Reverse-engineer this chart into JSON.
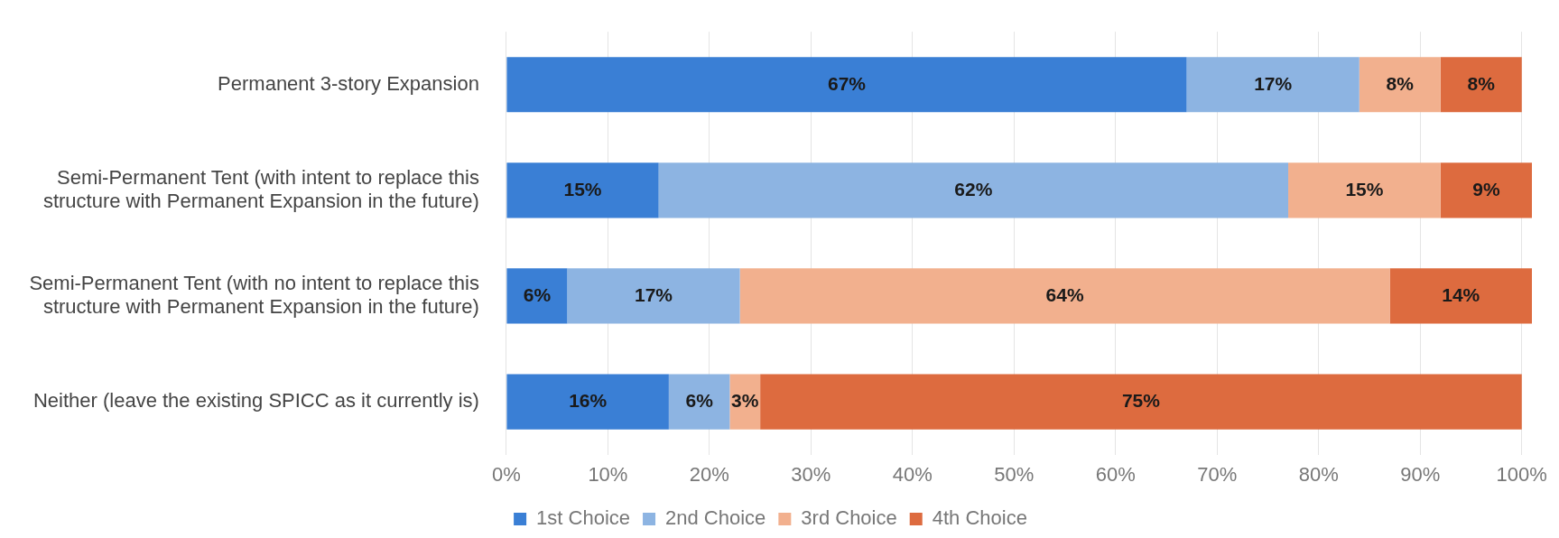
{
  "chart_data": {
    "type": "bar",
    "orientation": "horizontal",
    "stacked": true,
    "categories": [
      "Permanent 3-story Expansion",
      "Semi-Permanent Tent (with intent to replace this structure with Permanent Expansion in the future)",
      "Semi-Permanent Tent (with no intent to replace this structure with Permanent Expansion in the future)",
      "Neither (leave the existing SPICC as it currently is)"
    ],
    "series": [
      {
        "name": "1st Choice",
        "color": "#3a7fd5",
        "values": [
          67,
          15,
          6,
          16
        ],
        "value_labels": [
          "67%",
          "15%",
          "6%",
          "16%"
        ]
      },
      {
        "name": "2nd Choice",
        "color": "#8db4e2",
        "values": [
          17,
          62,
          17,
          6
        ],
        "value_labels": [
          "17%",
          "62%",
          "17%",
          "6%"
        ]
      },
      {
        "name": "3rd Choice",
        "color": "#f2b08e",
        "values": [
          8,
          15,
          64,
          3
        ],
        "value_labels": [
          "8%",
          "15%",
          "64%",
          "3%"
        ]
      },
      {
        "name": "4th Choice",
        "color": "#dd6b3f",
        "values": [
          8,
          9,
          14,
          75
        ],
        "value_labels": [
          "8%",
          "9%",
          "14%",
          "75%"
        ]
      }
    ],
    "xlim": [
      0,
      101
    ],
    "xticks": [
      {
        "value": 0,
        "label": "0%"
      },
      {
        "value": 10,
        "label": "10%"
      },
      {
        "value": 20,
        "label": "20%"
      },
      {
        "value": 30,
        "label": "30%"
      },
      {
        "value": 40,
        "label": "40%"
      },
      {
        "value": 50,
        "label": "50%"
      },
      {
        "value": 60,
        "label": "60%"
      },
      {
        "value": 70,
        "label": "70%"
      },
      {
        "value": 80,
        "label": "80%"
      },
      {
        "value": 90,
        "label": "90%"
      },
      {
        "value": 100,
        "label": "100%"
      }
    ],
    "grid": "x",
    "legend": "bottom"
  }
}
